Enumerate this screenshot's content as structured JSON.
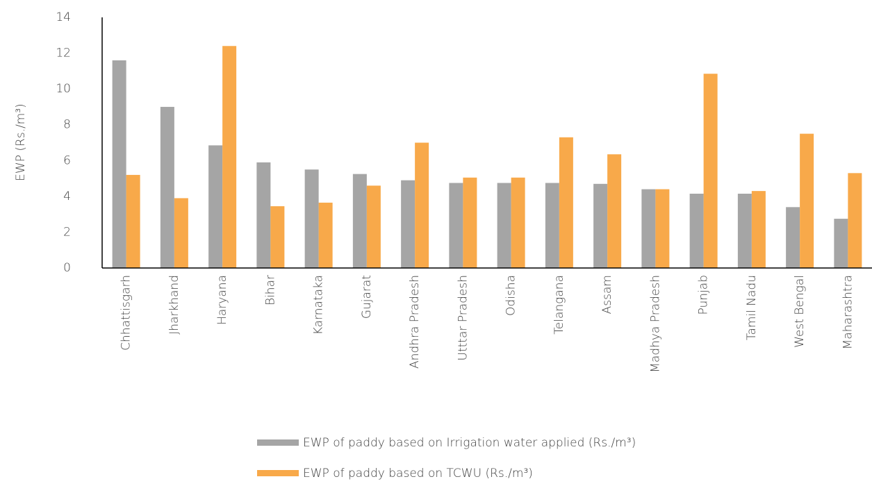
{
  "chart_data": {
    "type": "bar",
    "y_label": "EWP (Rs./m³)",
    "categories": [
      "Chhattisgarh",
      "Jharkhand",
      "Haryana",
      "Bihar",
      "Karnataka",
      "Gujarat",
      "Andhra Pradesh",
      "Utttar Pradesh",
      "Odisha",
      "Telangana",
      "Assam",
      "Madhya Pradesh",
      "Punjab",
      "Tamil Nadu",
      "West Bengal",
      "Maharashtra"
    ],
    "series": [
      {
        "name": "EWP of paddy based on Irrigation water applied (Rs./m³)",
        "color": "#a5a5a5",
        "values": [
          11.6,
          9.0,
          6.85,
          5.9,
          5.5,
          5.25,
          4.9,
          4.75,
          4.75,
          4.75,
          4.7,
          4.4,
          4.15,
          4.15,
          3.4,
          2.75
        ]
      },
      {
        "name": "EWP of paddy based on TCWU (Rs./m³)",
        "color": "#f8a94a",
        "values": [
          5.2,
          3.9,
          12.4,
          3.45,
          3.65,
          4.6,
          7.0,
          5.05,
          5.05,
          7.3,
          6.35,
          4.4,
          10.85,
          4.3,
          7.5,
          5.3
        ]
      }
    ],
    "ylim": [
      0,
      14
    ],
    "yticks": [
      0,
      2,
      4,
      6,
      8,
      10,
      12,
      14
    ],
    "grid": false,
    "legend": "bottom"
  }
}
